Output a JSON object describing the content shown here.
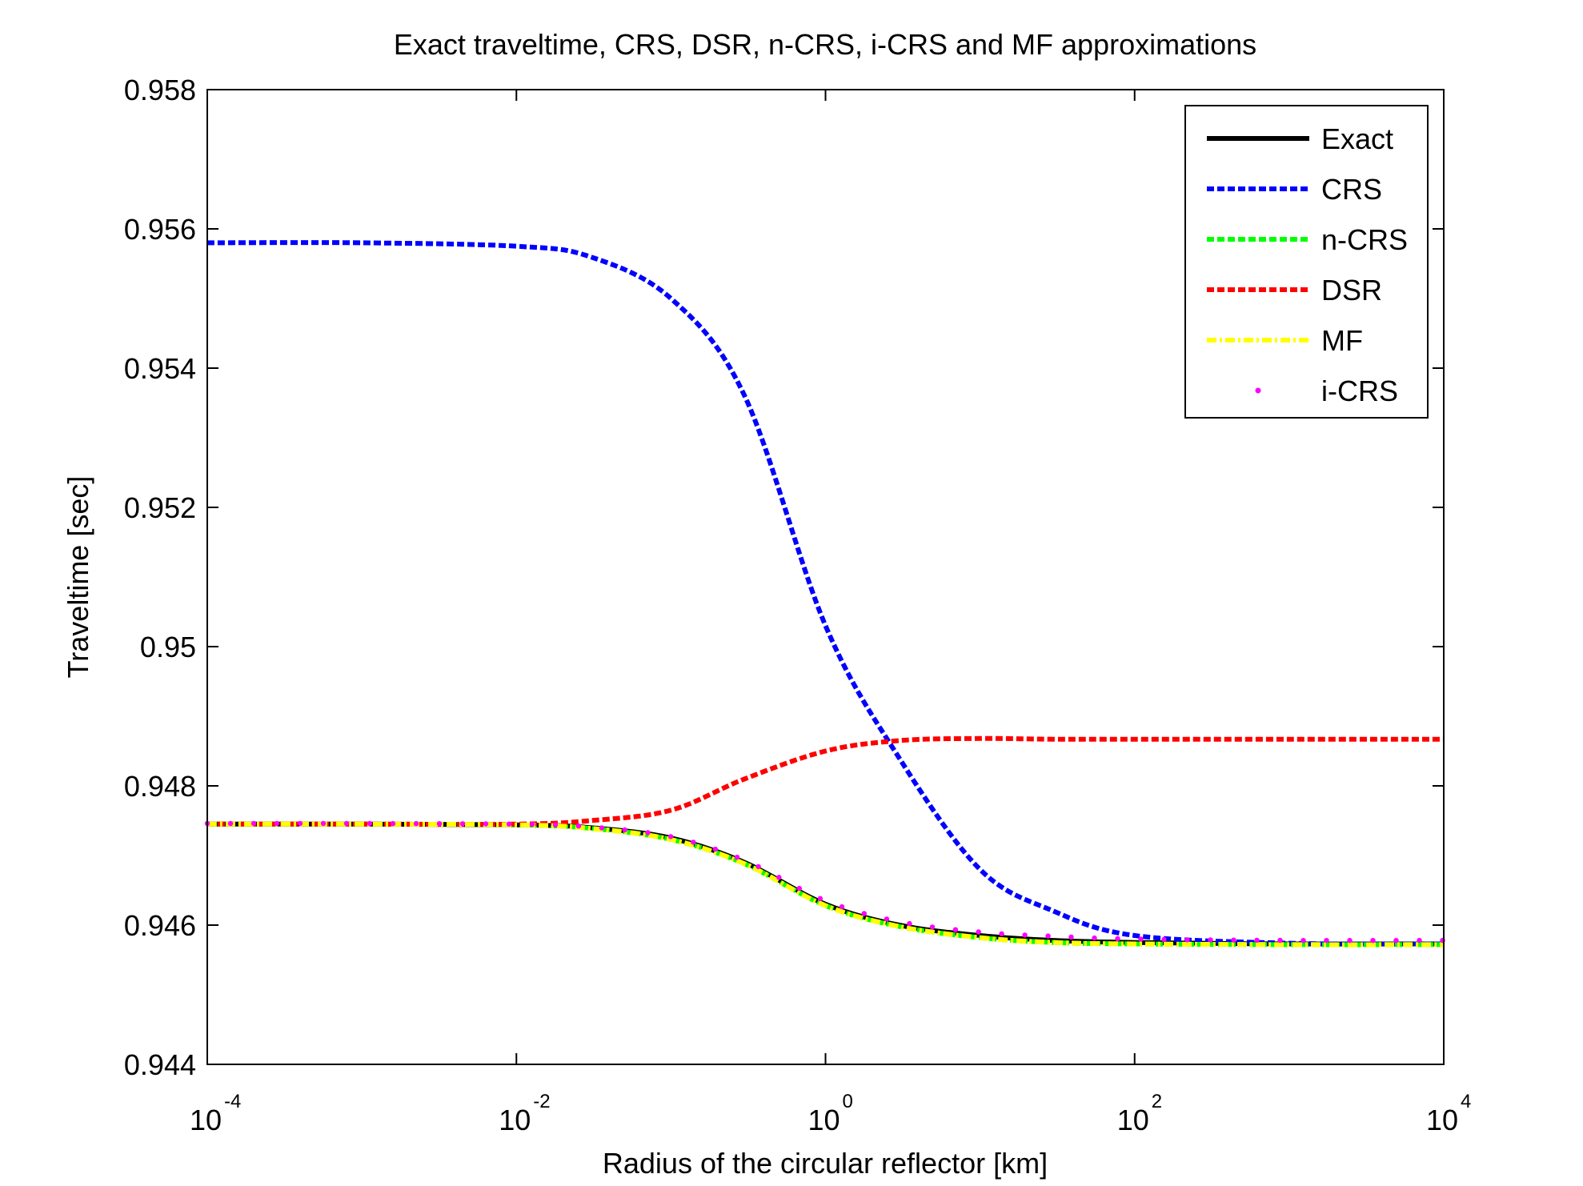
{
  "chart_data": {
    "type": "line",
    "title": "Exact traveltime, CRS, DSR, n-CRS, i-CRS and MF approximations",
    "xlabel": "Radius of the circular reflector [km]",
    "ylabel": "Traveltime [sec]",
    "x_scale": "log",
    "xlim": [
      0.0001,
      10000
    ],
    "ylim": [
      0.944,
      0.958
    ],
    "x_ticks": [
      {
        "value": 0.0001,
        "base": "10",
        "exp": "-4"
      },
      {
        "value": 0.01,
        "base": "10",
        "exp": "-2"
      },
      {
        "value": 1,
        "base": "10",
        "exp": "0"
      },
      {
        "value": 100,
        "base": "10",
        "exp": "2"
      },
      {
        "value": 10000,
        "base": "10",
        "exp": "4"
      }
    ],
    "y_ticks": [
      {
        "value": 0.944,
        "label": "0.944"
      },
      {
        "value": 0.946,
        "label": "0.946"
      },
      {
        "value": 0.948,
        "label": "0.948"
      },
      {
        "value": 0.95,
        "label": "0.95"
      },
      {
        "value": 0.952,
        "label": "0.952"
      },
      {
        "value": 0.954,
        "label": "0.954"
      },
      {
        "value": 0.956,
        "label": "0.956"
      },
      {
        "value": 0.958,
        "label": "0.958"
      }
    ],
    "grid": false,
    "legend_position": "top-right",
    "x": [
      0.0001,
      0.001,
      0.01,
      0.03,
      0.1,
      0.3,
      1,
      3,
      10,
      30,
      100,
      1000,
      10000
    ],
    "series": [
      {
        "name": "Exact",
        "color": "#000000",
        "style": "solid",
        "values": [
          0.94745,
          0.94745,
          0.94744,
          0.9474,
          0.94725,
          0.9469,
          0.9463,
          0.946,
          0.94585,
          0.94578,
          0.94575,
          0.94573,
          0.94573
        ]
      },
      {
        "name": "CRS",
        "color": "#0000ff",
        "style": "dashed",
        "values": [
          0.9558,
          0.9558,
          0.95575,
          0.9556,
          0.955,
          0.9536,
          0.9503,
          0.9484,
          0.9468,
          0.9462,
          0.94585,
          0.94574,
          0.94573
        ]
      },
      {
        "name": "n-CRS",
        "color": "#00ff00",
        "style": "dashed",
        "values": [
          0.94745,
          0.94745,
          0.94744,
          0.94739,
          0.94723,
          0.94688,
          0.94628,
          0.94598,
          0.94582,
          0.94575,
          0.94573,
          0.94572,
          0.94572
        ]
      },
      {
        "name": "DSR",
        "color": "#ff0000",
        "style": "dashed",
        "values": [
          0.94745,
          0.94745,
          0.94745,
          0.9475,
          0.94765,
          0.9481,
          0.9485,
          0.94865,
          0.94868,
          0.94867,
          0.94867,
          0.94867,
          0.94867
        ]
      },
      {
        "name": "MF",
        "color": "#ffff00",
        "style": "dashdot",
        "values": [
          0.94745,
          0.94745,
          0.94744,
          0.94739,
          0.94723,
          0.94688,
          0.94628,
          0.94598,
          0.94582,
          0.94575,
          0.94573,
          0.94572,
          0.94572
        ]
      },
      {
        "name": "i-CRS",
        "color": "#ff00ff",
        "style": "dots",
        "values": [
          0.94746,
          0.94746,
          0.94745,
          0.94741,
          0.94727,
          0.94693,
          0.94635,
          0.94605,
          0.9459,
          0.94584,
          0.9458,
          0.94578,
          0.94578
        ]
      }
    ]
  }
}
